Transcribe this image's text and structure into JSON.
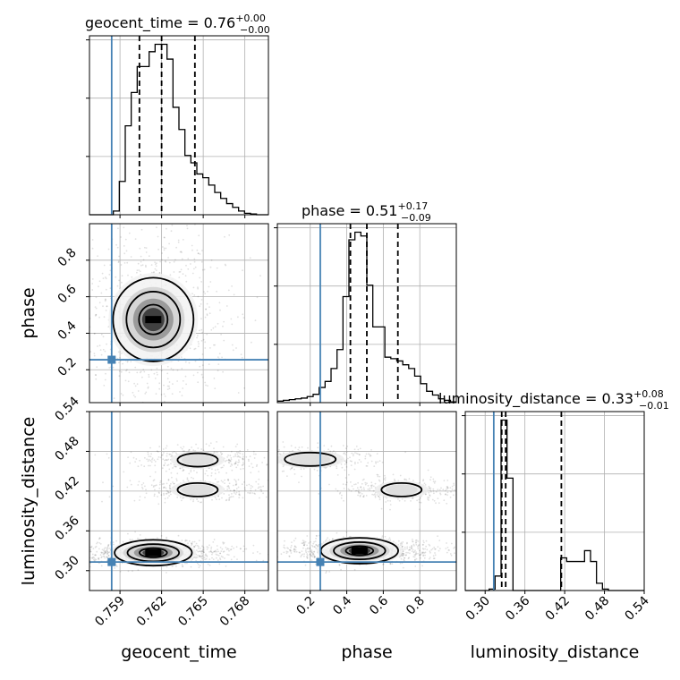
{
  "chart_data": {
    "type": "corner",
    "parameters": [
      {
        "name": "geocent_time",
        "label": "geocent_time",
        "median": "0.76",
        "plus": "+0.00",
        "minus": "−0.00",
        "truth": 0.7584,
        "range": [
          0.7568,
          0.7697
        ],
        "ticks": [
          0.759,
          0.762,
          0.765,
          0.768
        ],
        "tick_labels": [
          "0.759",
          "0.762",
          "0.765",
          "0.768"
        ],
        "quantiles": [
          0.7604,
          0.762,
          0.7644
        ]
      },
      {
        "name": "phase",
        "label": "phase",
        "median": "0.51",
        "plus": "+0.17",
        "minus": "−0.09",
        "truth": 0.255,
        "range": [
          0.02,
          1.0
        ],
        "ticks": [
          0.2,
          0.4,
          0.6,
          0.8
        ],
        "tick_labels": [
          "0.2",
          "0.4",
          "0.6",
          "0.8"
        ],
        "quantiles": [
          0.42,
          0.51,
          0.68
        ]
      },
      {
        "name": "luminosity_distance",
        "label": "luminosity_distance",
        "median": "0.33",
        "plus": "+0.08",
        "minus": "−0.01",
        "truth": 0.313,
        "range": [
          0.27,
          0.54
        ],
        "ticks": [
          0.3,
          0.36,
          0.42,
          0.48,
          0.54
        ],
        "tick_labels": [
          "0.30",
          "0.36",
          "0.42",
          "0.48",
          "0.54"
        ],
        "quantiles": [
          0.325,
          0.331,
          0.415
        ]
      }
    ],
    "histograms": [
      {
        "param": "geocent_time",
        "bins": [
          0.7568,
          0.75723,
          0.75766,
          0.75809,
          0.75852,
          0.75895,
          0.75938,
          0.75981,
          0.76024,
          0.76067,
          0.7611,
          0.76153,
          0.76196,
          0.76239,
          0.76282,
          0.76325,
          0.76368,
          0.76411,
          0.76454,
          0.76497,
          0.7654,
          0.76583,
          0.76626,
          0.76669,
          0.76712,
          0.76755,
          0.76798,
          0.76841,
          0.76884,
          0.76927,
          0.7697
        ],
        "counts": [
          0,
          0,
          0,
          0,
          5,
          45,
          120,
          165,
          200,
          200,
          220,
          230,
          230,
          210,
          145,
          115,
          80,
          70,
          55,
          50,
          40,
          30,
          22,
          15,
          10,
          5,
          2,
          1,
          0,
          0
        ]
      },
      {
        "param": "phase",
        "bins": [
          0.02,
          0.0527,
          0.0853,
          0.118,
          0.1507,
          0.1833,
          0.216,
          0.2487,
          0.2813,
          0.314,
          0.3467,
          0.3793,
          0.412,
          0.4447,
          0.4773,
          0.51,
          0.5427,
          0.5753,
          0.6087,
          0.6413,
          0.674,
          0.7067,
          0.7393,
          0.772,
          0.8047,
          0.8373,
          0.87,
          0.9027,
          0.9353,
          0.968,
          1.0
        ],
        "counts": [
          2,
          3,
          4,
          5,
          6,
          8,
          11,
          20,
          28,
          45,
          70,
          140,
          215,
          225,
          220,
          155,
          100,
          100,
          60,
          58,
          55,
          50,
          45,
          35,
          25,
          15,
          10,
          5,
          3,
          1
        ]
      },
      {
        "param": "luminosity_distance",
        "bins": [
          0.27,
          0.279,
          0.288,
          0.297,
          0.306,
          0.315,
          0.324,
          0.333,
          0.342,
          0.351,
          0.36,
          0.369,
          0.378,
          0.387,
          0.396,
          0.405,
          0.414,
          0.423,
          0.432,
          0.441,
          0.45,
          0.459,
          0.468,
          0.477,
          0.486,
          0.495,
          0.504,
          0.513,
          0.522,
          0.531,
          0.54
        ],
        "counts": [
          0,
          0,
          0,
          0,
          2,
          20,
          235,
          155,
          0,
          0,
          0,
          0,
          0,
          0,
          0,
          0,
          45,
          40,
          40,
          40,
          55,
          40,
          10,
          2,
          0,
          0,
          0,
          0,
          0,
          0
        ]
      }
    ],
    "pairs": [
      {
        "x": "geocent_time",
        "y": "phase",
        "peaks": [
          [
            0.7614,
            0.475
          ]
        ]
      },
      {
        "x": "geocent_time",
        "y": "luminosity_distance",
        "peaks": [
          [
            0.7614,
            0.327
          ],
          [
            0.7646,
            0.467
          ],
          [
            0.7646,
            0.422
          ]
        ]
      },
      {
        "x": "phase",
        "y": "luminosity_distance",
        "peaks": [
          [
            0.47,
            0.33
          ],
          [
            0.2,
            0.468
          ],
          [
            0.7,
            0.422
          ]
        ]
      }
    ],
    "truth_color": "#4682b4",
    "quantile_style": "dashed",
    "grid": true,
    "legend": "none"
  }
}
